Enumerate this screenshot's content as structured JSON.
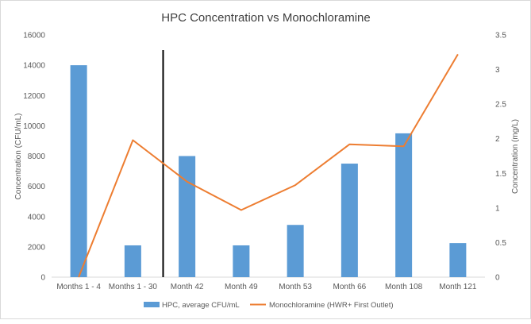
{
  "chart_data": {
    "type": "bar+line",
    "title": "HPC Concentration vs Monochloramine",
    "categories": [
      "Months 1 - 4",
      "Months 1 - 30",
      "Month 42",
      "Month 49",
      "Month 53",
      "Month 66",
      "Month 108",
      "Month 121"
    ],
    "ylabel_left": "Concentration (CFU/mL)",
    "ylabel_right": "Concentration (mg/L)",
    "ylim_left": [
      0,
      16000
    ],
    "ylim_right": [
      0,
      3.5
    ],
    "yticks_left": [
      "0",
      "2000",
      "4000",
      "6000",
      "8000",
      "10000",
      "12000",
      "14000",
      "16000"
    ],
    "yticks_right": [
      "0",
      "0.5",
      "1",
      "1.5",
      "2",
      "2.5",
      "3",
      "3.5"
    ],
    "series": [
      {
        "name": "HPC, average CFU/mL",
        "kind": "bar",
        "axis": "left",
        "color": "#5b9bd5",
        "values": [
          14000,
          2100,
          8000,
          2100,
          3450,
          7500,
          9500,
          2250
        ]
      },
      {
        "name": "Monochloramine (HWR+ First Outlet)",
        "kind": "line",
        "axis": "right",
        "color": "#ed7d31",
        "values": [
          0,
          1.98,
          1.38,
          0.97,
          1.33,
          1.92,
          1.89,
          3.22
        ]
      }
    ],
    "annotation": "vertical divider line between Months 1 - 30 and Month 42",
    "grid": false,
    "legend": "bottom"
  }
}
